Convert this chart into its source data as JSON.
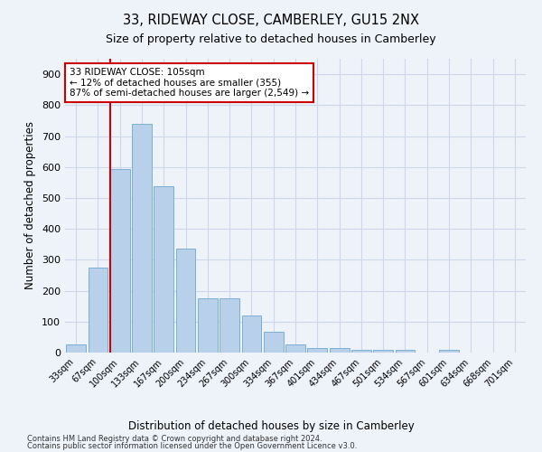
{
  "title1": "33, RIDEWAY CLOSE, CAMBERLEY, GU15 2NX",
  "title2": "Size of property relative to detached houses in Camberley",
  "xlabel": "Distribution of detached houses by size in Camberley",
  "ylabel": "Number of detached properties",
  "categories": [
    "33sqm",
    "67sqm",
    "100sqm",
    "133sqm",
    "167sqm",
    "200sqm",
    "234sqm",
    "267sqm",
    "300sqm",
    "334sqm",
    "367sqm",
    "401sqm",
    "434sqm",
    "467sqm",
    "501sqm",
    "534sqm",
    "567sqm",
    "601sqm",
    "634sqm",
    "668sqm",
    "701sqm"
  ],
  "values": [
    27,
    275,
    593,
    740,
    537,
    335,
    176,
    175,
    120,
    68,
    25,
    15,
    15,
    10,
    10,
    10,
    0,
    10,
    0,
    0,
    0
  ],
  "bar_color": "#b8d0ea",
  "bar_edge_color": "#7aafd4",
  "grid_color": "#ccd8ea",
  "vline_color": "#cc0000",
  "annotation_text": "33 RIDEWAY CLOSE: 105sqm\n← 12% of detached houses are smaller (355)\n87% of semi-detached houses are larger (2,549) →",
  "annotation_box_color": "#ffffff",
  "annotation_box_edge": "#cc0000",
  "ylim": [
    0,
    950
  ],
  "yticks": [
    0,
    100,
    200,
    300,
    400,
    500,
    600,
    700,
    800,
    900
  ],
  "footer1": "Contains HM Land Registry data © Crown copyright and database right 2024.",
  "footer2": "Contains public sector information licensed under the Open Government Licence v3.0.",
  "bg_color": "#eef2f9"
}
